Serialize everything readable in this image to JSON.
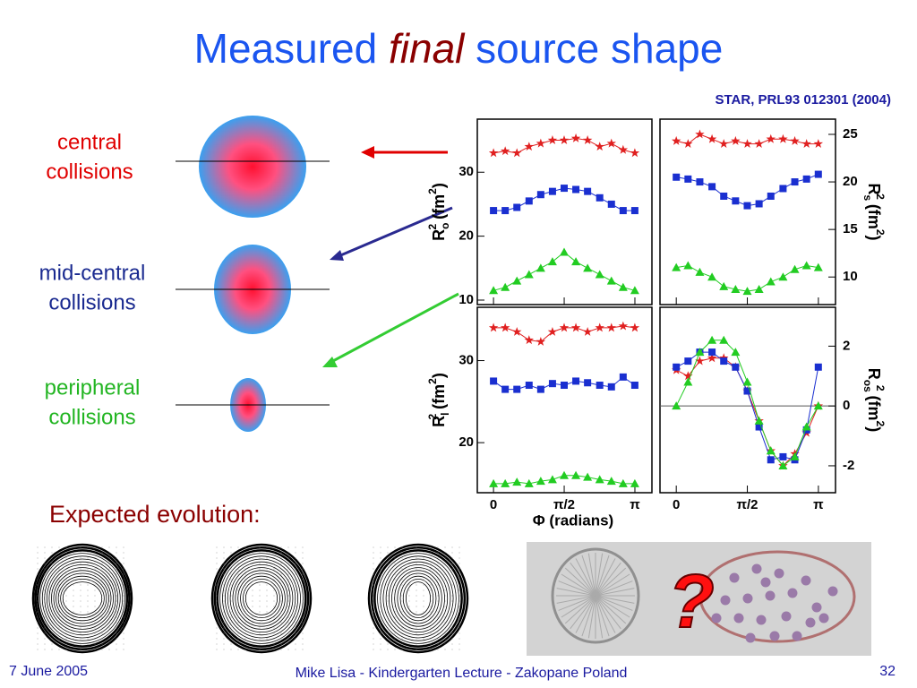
{
  "slide": {
    "title": [
      "Measured ",
      "final",
      " source shape"
    ],
    "citation": "STAR, PRL93 012301 (2004)",
    "labels": [
      [
        "central",
        "collisions"
      ],
      [
        "mid-central",
        "collisions"
      ],
      [
        "peripheral",
        "collisions"
      ]
    ],
    "xlabel": "Φ (radians)",
    "evolution": "Expected evolution:",
    "question": "?",
    "footer": {
      "date": "7 June 2005",
      "center": "Mike Lisa - Kindergarten Lecture - Zakopane Poland",
      "page": "32"
    }
  },
  "chart_data": [
    {
      "type": "scatter",
      "ylabel": [
        "R",
        "o",
        "2",
        " (fm",
        "2",
        ")"
      ],
      "xlim": [
        -0.36,
        3.52
      ],
      "ylim": [
        9.3,
        38.3
      ],
      "yticks": [
        10,
        20,
        30
      ],
      "xticks": [
        0,
        {
          "value": 1.5708,
          "label": "π/2"
        },
        {
          "value": 3.1416,
          "label": "π"
        }
      ],
      "x": [
        0,
        0.26,
        0.52,
        0.79,
        1.05,
        1.31,
        1.57,
        1.83,
        2.09,
        2.36,
        2.62,
        2.88,
        3.14
      ],
      "series": [
        {
          "color": "#e02020",
          "marker": "star",
          "values": [
            33,
            33.3,
            33,
            34,
            34.5,
            35,
            35,
            35.3,
            35,
            34,
            34.5,
            33.5,
            33
          ]
        },
        {
          "color": "#1a2fd0",
          "marker": "square",
          "values": [
            24,
            24,
            24.5,
            25.5,
            26.5,
            27,
            27.5,
            27.3,
            27,
            26,
            25,
            24,
            24
          ]
        },
        {
          "color": "#22cc22",
          "marker": "triangle",
          "values": [
            11.5,
            12,
            13,
            14,
            15,
            16,
            17.5,
            16,
            15,
            14,
            13,
            12,
            11.5
          ]
        }
      ]
    },
    {
      "type": "scatter",
      "ylabel": [
        "R",
        "s",
        "2",
        " (fm",
        "2",
        ")"
      ],
      "xlim": [
        -0.36,
        3.52
      ],
      "ylim": [
        7.1,
        26.6
      ],
      "yticks": [
        10,
        15,
        20,
        25
      ],
      "xticks": [
        0,
        {
          "value": 1.5708,
          "label": "π/2"
        },
        {
          "value": 3.1416,
          "label": "π"
        }
      ],
      "x": [
        0,
        0.26,
        0.52,
        0.79,
        1.05,
        1.31,
        1.57,
        1.83,
        2.09,
        2.36,
        2.62,
        2.88,
        3.14
      ],
      "series": [
        {
          "color": "#e02020",
          "marker": "star",
          "values": [
            24.3,
            24,
            25,
            24.5,
            24,
            24.3,
            24,
            24,
            24.5,
            24.5,
            24.3,
            24,
            24
          ]
        },
        {
          "color": "#1a2fd0",
          "marker": "square",
          "values": [
            20.5,
            20.3,
            20,
            19.5,
            18.5,
            18,
            17.5,
            17.7,
            18.5,
            19.3,
            20,
            20.3,
            20.8
          ]
        },
        {
          "color": "#22cc22",
          "marker": "triangle",
          "values": [
            11,
            11.2,
            10.5,
            10,
            9,
            8.7,
            8.5,
            8.7,
            9.5,
            10,
            10.8,
            11.2,
            11
          ]
        }
      ]
    },
    {
      "type": "scatter",
      "ylabel": [
        "R",
        "l",
        "2",
        " (fm",
        "2",
        ")"
      ],
      "xlim": [
        -0.36,
        3.52
      ],
      "ylim": [
        13.9,
        36.5
      ],
      "yticks": [
        20,
        30
      ],
      "xticks": [
        0,
        {
          "value": 1.5708,
          "label": "π/2"
        },
        {
          "value": 3.1416,
          "label": "π"
        }
      ],
      "x": [
        0,
        0.26,
        0.52,
        0.79,
        1.05,
        1.31,
        1.57,
        1.83,
        2.09,
        2.36,
        2.62,
        2.88,
        3.14
      ],
      "series": [
        {
          "color": "#e02020",
          "marker": "star",
          "values": [
            34,
            34,
            33.5,
            32.5,
            32.3,
            33.5,
            34,
            34,
            33.5,
            34,
            34,
            34.2,
            34
          ]
        },
        {
          "color": "#1a2fd0",
          "marker": "square",
          "values": [
            27.5,
            26.5,
            26.5,
            27,
            26.5,
            27.2,
            27,
            27.5,
            27.3,
            27,
            26.8,
            28,
            27
          ]
        },
        {
          "color": "#22cc22",
          "marker": "triangle",
          "values": [
            15,
            15,
            15.2,
            15,
            15.3,
            15.5,
            16,
            16,
            15.8,
            15.5,
            15.3,
            15,
            15
          ]
        }
      ]
    },
    {
      "type": "scatter",
      "ylabel": [
        "R",
        "os",
        "2",
        " (fm",
        "2",
        ")"
      ],
      "xlim": [
        -0.36,
        3.52
      ],
      "ylim": [
        -2.9,
        3.3
      ],
      "yticks": [
        -2,
        0,
        2
      ],
      "xticks": [
        0,
        {
          "value": 1.5708,
          "label": "π/2"
        },
        {
          "value": 3.1416,
          "label": "π"
        }
      ],
      "x": [
        0,
        0.26,
        0.52,
        0.79,
        1.05,
        1.31,
        1.57,
        1.83,
        2.09,
        2.36,
        2.62,
        2.88,
        3.14
      ],
      "series": [
        {
          "color": "#e02020",
          "marker": "star",
          "values": [
            1.2,
            1,
            1.5,
            1.6,
            1.6,
            1.3,
            0.5,
            -0.5,
            -1.5,
            -2,
            -1.6,
            -0.9,
            0
          ]
        },
        {
          "color": "#1a2fd0",
          "marker": "square",
          "values": [
            1.3,
            1.5,
            1.8,
            1.8,
            1.5,
            1.3,
            0.5,
            -0.7,
            -1.8,
            -1.7,
            -1.8,
            -0.8,
            1.3
          ]
        },
        {
          "color": "#22cc22",
          "marker": "triangle",
          "values": [
            0,
            0.8,
            1.8,
            2.2,
            2.2,
            1.8,
            0.8,
            -0.5,
            -1.5,
            -2,
            -1.7,
            -0.7,
            0
          ]
        }
      ]
    }
  ]
}
